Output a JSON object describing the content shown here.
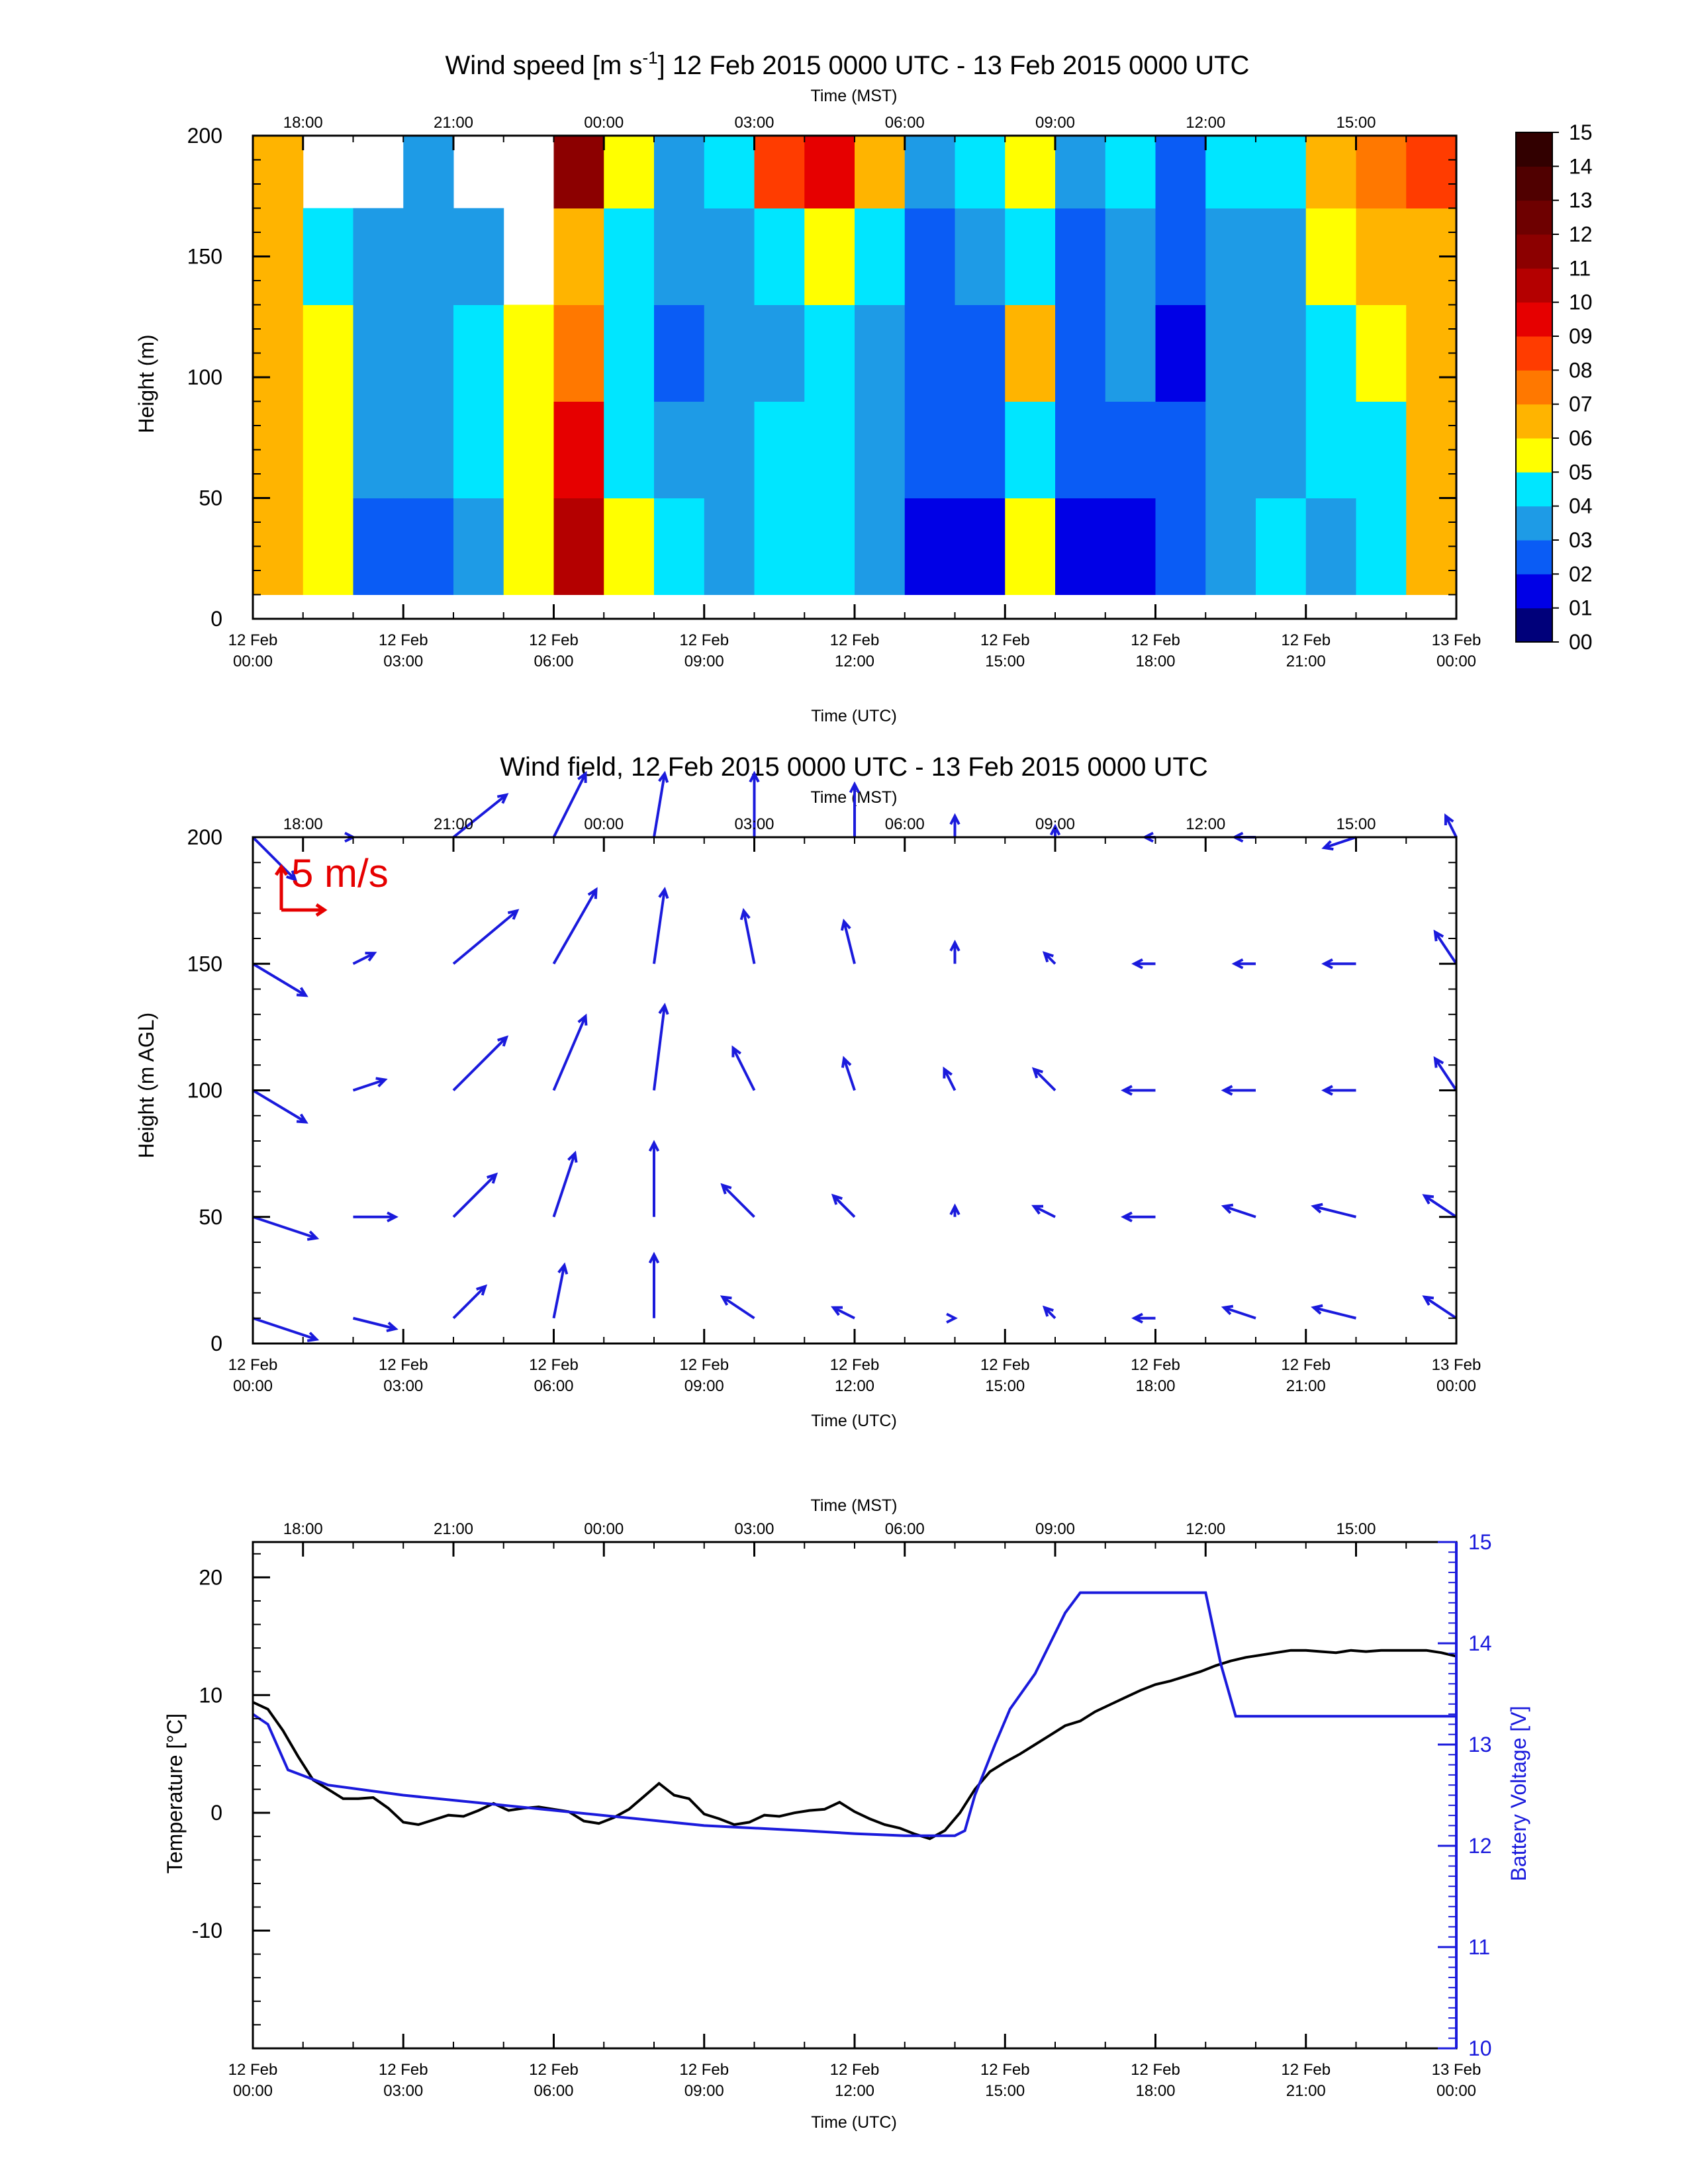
{
  "chart_data": [
    {
      "type": "heatmap",
      "title": "Wind speed [m s-1] 12 Feb 2015 0000 UTC - 13 Feb 2015 0000 UTC",
      "title_main": "Wind speed [m s",
      "title_sup": "-1",
      "title_rest": "] 12 Feb 2015 0000 UTC - 13 Feb 2015 0000 UTC",
      "top_axis_label": "Time (MST)",
      "bottom_axis_label": "Time (UTC)",
      "ylabel": "Height (m)",
      "ylim": [
        0,
        200
      ],
      "xlim_hours_utc": [
        0,
        24
      ],
      "y_ticks": [
        "0",
        "50",
        "100",
        "150",
        "200"
      ],
      "colorbar_ticks": [
        "00",
        "01",
        "02",
        "03",
        "04",
        "05",
        "06",
        "07",
        "08",
        "09",
        "10",
        "11",
        "12",
        "13",
        "14",
        "15"
      ],
      "colorbar_colors": [
        "#00007a",
        "#0000e6",
        "#0a5cf5",
        "#1e9be6",
        "#00e6ff",
        "#ffff00",
        "#ffb400",
        "#ff7800",
        "#ff3c00",
        "#e60000",
        "#b40000",
        "#8c0000",
        "#6e0000",
        "#500000",
        "#320000"
      ],
      "grid_x_hours_utc": [
        0,
        1,
        2,
        3,
        4,
        5,
        6,
        7,
        8,
        9,
        10,
        11,
        12,
        13,
        14,
        15,
        16,
        17,
        18,
        19,
        20,
        21,
        22,
        23
      ],
      "grid_y_m": [
        10,
        50,
        90,
        130,
        170,
        200
      ],
      "values_ms": [
        [
          6,
          6,
          6,
          6,
          6,
          6
        ],
        [
          5,
          5,
          5,
          4,
          null,
          null
        ],
        [
          2,
          3,
          3,
          3,
          null,
          null
        ],
        [
          2,
          3,
          3,
          3,
          3,
          null
        ],
        [
          3,
          4,
          4,
          3,
          null,
          null
        ],
        [
          5,
          5,
          5,
          null,
          null,
          null
        ],
        [
          10,
          9,
          7,
          6,
          11,
          13
        ],
        [
          5,
          4,
          4,
          4,
          5,
          5
        ],
        [
          4,
          3,
          2,
          3,
          3,
          4
        ],
        [
          3,
          3,
          3,
          3,
          4,
          4
        ],
        [
          4,
          4,
          3,
          4,
          8,
          11
        ],
        [
          4,
          4,
          4,
          5,
          9,
          12
        ],
        [
          3,
          3,
          3,
          4,
          6,
          10
        ],
        [
          1,
          2,
          2,
          2,
          3,
          5
        ],
        [
          1,
          2,
          2,
          3,
          4,
          null
        ],
        [
          5,
          4,
          6,
          4,
          5,
          null
        ],
        [
          1,
          2,
          2,
          2,
          3,
          4
        ],
        [
          1,
          2,
          3,
          3,
          4,
          5
        ],
        [
          2,
          2,
          1,
          2,
          2,
          3
        ],
        [
          3,
          3,
          3,
          3,
          4,
          5
        ],
        [
          4,
          3,
          3,
          3,
          4,
          5
        ],
        [
          3,
          4,
          4,
          5,
          6,
          7
        ],
        [
          4,
          4,
          5,
          6,
          7,
          9
        ],
        [
          6,
          6,
          6,
          6,
          8,
          9
        ]
      ]
    },
    {
      "type": "vector",
      "title": "Wind field, 12 Feb 2015 0000 UTC - 13 Feb 2015 0000 UTC",
      "top_axis_label": "Time (MST)",
      "bottom_axis_label": "Time (UTC)",
      "ylabel": "Height (m AGL)",
      "ylim": [
        0,
        200
      ],
      "xlim_hours_utc": [
        0,
        24
      ],
      "y_ticks": [
        "0",
        "50",
        "100",
        "150",
        "200"
      ],
      "scale_label": "5 m/s",
      "scale_ms": 5,
      "arrow_color": "#1a1adc",
      "scale_color": "#e60000",
      "grid_x_hours_utc": [
        0,
        2,
        4,
        6,
        8,
        10,
        12,
        14,
        16,
        18,
        20,
        22,
        24
      ],
      "grid_y_m": [
        10,
        50,
        100,
        150,
        200
      ],
      "u_ms": [
        [
          6,
          6,
          5,
          5,
          4
        ],
        [
          4,
          4,
          3,
          2,
          0
        ],
        [
          3,
          4,
          5,
          6,
          5
        ],
        [
          1,
          2,
          3,
          4,
          3
        ],
        [
          0,
          0,
          1,
          1,
          1
        ],
        [
          -3,
          -3,
          -2,
          -1,
          0
        ],
        [
          -2,
          -2,
          -1,
          -1,
          0
        ],
        [
          0,
          0,
          -1,
          0,
          0
        ],
        [
          -1,
          -2,
          -2,
          -1,
          0
        ],
        [
          -2,
          -3,
          -3,
          -2,
          -1
        ],
        [
          -3,
          -3,
          -3,
          -2,
          -2
        ],
        [
          -4,
          -4,
          -3,
          -3,
          -3
        ],
        [
          -3,
          -3,
          -2,
          -2,
          -1
        ]
      ],
      "v_ms": [
        [
          -2,
          -2,
          -3,
          -3,
          -4
        ],
        [
          -1,
          0,
          1,
          1,
          0
        ],
        [
          3,
          4,
          5,
          5,
          4
        ],
        [
          5,
          6,
          7,
          7,
          6
        ],
        [
          6,
          7,
          8,
          7,
          6
        ],
        [
          2,
          3,
          4,
          5,
          6
        ],
        [
          1,
          2,
          3,
          4,
          5
        ],
        [
          0,
          1,
          2,
          2,
          2
        ],
        [
          1,
          1,
          2,
          1,
          1
        ],
        [
          0,
          0,
          0,
          0,
          0
        ],
        [
          1,
          1,
          0,
          0,
          0
        ],
        [
          1,
          1,
          0,
          0,
          -1
        ],
        [
          2,
          2,
          3,
          3,
          2
        ]
      ]
    },
    {
      "type": "line",
      "top_axis_label": "Time (MST)",
      "bottom_axis_label": "Time (UTC)",
      "ylabel": "Temperature [°C]",
      "ylabel2": "Battery Voltage [V]",
      "ylim": [
        -20,
        23
      ],
      "ylim2": [
        10,
        15
      ],
      "xlim_hours_utc": [
        0,
        24
      ],
      "y_ticks": [
        "-10",
        "0",
        "10",
        "20"
      ],
      "y2_ticks": [
        "10",
        "11",
        "12",
        "13",
        "14",
        "15"
      ],
      "series": [
        {
          "color": "#000000",
          "x_hours_utc": [
            0,
            0.3,
            0.6,
            0.9,
            1.2,
            1.5,
            1.8,
            2.1,
            2.4,
            2.7,
            3,
            3.3,
            3.6,
            3.9,
            4.2,
            4.5,
            4.8,
            5.1,
            5.4,
            5.7,
            6,
            6.3,
            6.6,
            6.9,
            7.2,
            7.5,
            7.8,
            8.1,
            8.4,
            8.7,
            9,
            9.3,
            9.6,
            9.9,
            10.2,
            10.5,
            10.8,
            11.1,
            11.4,
            11.7,
            12,
            12.3,
            12.6,
            12.9,
            13.2,
            13.5,
            13.8,
            14.1,
            14.4,
            14.7,
            15,
            15.3,
            15.6,
            15.9,
            16.2,
            16.5,
            16.8,
            17.1,
            17.4,
            17.7,
            18,
            18.3,
            18.6,
            18.9,
            19.2,
            19.5,
            19.8,
            20.1,
            20.4,
            20.7,
            21,
            21.3,
            21.6,
            21.9,
            22.2,
            22.5,
            22.8,
            23.1,
            23.4,
            23.7,
            24
          ],
          "y": [
            9.4,
            8.8,
            7.0,
            4.8,
            2.8,
            2.0,
            1.2,
            1.2,
            1.3,
            0.4,
            -0.8,
            -1.0,
            -0.6,
            -0.2,
            -0.3,
            0.2,
            0.8,
            0.2,
            0.4,
            0.5,
            0.3,
            0.1,
            -0.7,
            -0.9,
            -0.4,
            0.3,
            1.4,
            2.5,
            1.5,
            1.2,
            -0.1,
            -0.5,
            -1.0,
            -0.8,
            -0.2,
            -0.3,
            0.0,
            0.2,
            0.3,
            0.9,
            0.1,
            -0.5,
            -1.0,
            -1.3,
            -1.8,
            -2.2,
            -1.5,
            0.0,
            2.0,
            3.5,
            4.3,
            5.0,
            5.8,
            6.6,
            7.4,
            7.8,
            8.6,
            9.2,
            9.8,
            10.4,
            10.9,
            11.2,
            11.6,
            12.0,
            12.5,
            12.9,
            13.2,
            13.4,
            13.6,
            13.8,
            13.8,
            13.7,
            13.6,
            13.8,
            13.7,
            13.8,
            13.8,
            13.8,
            13.8,
            13.6,
            13.3
          ]
        },
        {
          "color": "#1a1adc",
          "axis": "right",
          "x_hours_utc": [
            0,
            0.3,
            0.7,
            1.5,
            3,
            5,
            7,
            9,
            11,
            12,
            13,
            14,
            14.2,
            14.4,
            14.8,
            15.1,
            15.6,
            16.2,
            16.5,
            17,
            18,
            19,
            19.3,
            19.6,
            20,
            22,
            24
          ],
          "y": [
            13.3,
            13.2,
            12.75,
            12.6,
            12.5,
            12.4,
            12.3,
            12.2,
            12.15,
            12.12,
            12.1,
            12.1,
            12.15,
            12.5,
            13.0,
            13.35,
            13.7,
            14.3,
            14.5,
            14.5,
            14.5,
            14.5,
            13.8,
            13.28,
            13.28,
            13.28,
            13.28
          ]
        }
      ]
    }
  ],
  "top_ticks": [
    "18:00",
    "21:00",
    "00:00",
    "03:00",
    "06:00",
    "09:00",
    "12:00",
    "15:00"
  ],
  "top_ticks_hours_utc": [
    1,
    4,
    7,
    10,
    13,
    16,
    19,
    22
  ],
  "bottom_ticks": [
    {
      "line1": "12 Feb",
      "line2": "00:00"
    },
    {
      "line1": "12 Feb",
      "line2": "03:00"
    },
    {
      "line1": "12 Feb",
      "line2": "06:00"
    },
    {
      "line1": "12 Feb",
      "line2": "09:00"
    },
    {
      "line1": "12 Feb",
      "line2": "12:00"
    },
    {
      "line1": "12 Feb",
      "line2": "15:00"
    },
    {
      "line1": "12 Feb",
      "line2": "18:00"
    },
    {
      "line1": "12 Feb",
      "line2": "21:00"
    },
    {
      "line1": "13 Feb",
      "line2": "00:00"
    }
  ],
  "bottom_ticks_hours_utc": [
    0,
    3,
    6,
    9,
    12,
    15,
    18,
    21,
    24
  ]
}
